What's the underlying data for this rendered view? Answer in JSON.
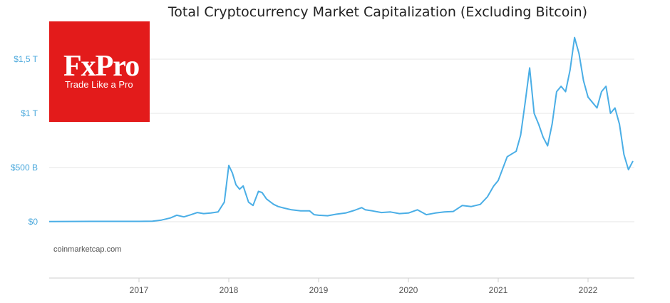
{
  "logo": {
    "brand": "FxPro",
    "tagline": "Trade Like a Pro"
  },
  "colors": {
    "line": "#4aaee6",
    "axis_text_y": "#4aa8dc",
    "axis_text_x": "#555555",
    "grid": "#e6e6e6",
    "brand": "#e31b1b"
  },
  "source": "coinmarketcap.com",
  "chart_data": {
    "type": "line",
    "title": "Total Cryptocurrency Market Capitalization (Excluding Bitcoin)",
    "xlabel": "",
    "ylabel": "",
    "xlim": [
      2016.0,
      2022.5
    ],
    "ylim": [
      -500,
      2000
    ],
    "y_ticks": [
      {
        "value": 0,
        "label": "$0"
      },
      {
        "value": 500,
        "label": "$500 B"
      },
      {
        "value": 1000,
        "label": "$1 T"
      },
      {
        "value": 1500,
        "label": "$1,5 T"
      }
    ],
    "x_ticks": [
      {
        "value": 2017,
        "label": "2017"
      },
      {
        "value": 2018,
        "label": "2018"
      },
      {
        "value": 2019,
        "label": "2019"
      },
      {
        "value": 2020,
        "label": "2020"
      },
      {
        "value": 2021,
        "label": "2021"
      },
      {
        "value": 2022,
        "label": "2022"
      }
    ],
    "grid": true,
    "series": [
      {
        "values": [
          [
            2016.0,
            2
          ],
          [
            2016.5,
            3
          ],
          [
            2017.0,
            3
          ],
          [
            2017.15,
            5
          ],
          [
            2017.25,
            15
          ],
          [
            2017.35,
            35
          ],
          [
            2017.42,
            60
          ],
          [
            2017.5,
            45
          ],
          [
            2017.58,
            65
          ],
          [
            2017.65,
            85
          ],
          [
            2017.72,
            75
          ],
          [
            2017.8,
            80
          ],
          [
            2017.88,
            90
          ],
          [
            2017.95,
            180
          ],
          [
            2018.0,
            520
          ],
          [
            2018.04,
            450
          ],
          [
            2018.08,
            340
          ],
          [
            2018.12,
            300
          ],
          [
            2018.16,
            330
          ],
          [
            2018.22,
            180
          ],
          [
            2018.27,
            150
          ],
          [
            2018.33,
            280
          ],
          [
            2018.37,
            270
          ],
          [
            2018.42,
            210
          ],
          [
            2018.5,
            160
          ],
          [
            2018.55,
            140
          ],
          [
            2018.62,
            125
          ],
          [
            2018.7,
            110
          ],
          [
            2018.8,
            100
          ],
          [
            2018.9,
            100
          ],
          [
            2018.95,
            65
          ],
          [
            2019.0,
            60
          ],
          [
            2019.1,
            55
          ],
          [
            2019.2,
            70
          ],
          [
            2019.3,
            80
          ],
          [
            2019.4,
            105
          ],
          [
            2019.48,
            130
          ],
          [
            2019.52,
            110
          ],
          [
            2019.6,
            100
          ],
          [
            2019.7,
            85
          ],
          [
            2019.8,
            90
          ],
          [
            2019.9,
            75
          ],
          [
            2020.0,
            80
          ],
          [
            2020.1,
            110
          ],
          [
            2020.2,
            65
          ],
          [
            2020.3,
            80
          ],
          [
            2020.4,
            90
          ],
          [
            2020.5,
            95
          ],
          [
            2020.6,
            150
          ],
          [
            2020.7,
            140
          ],
          [
            2020.8,
            160
          ],
          [
            2020.88,
            230
          ],
          [
            2020.95,
            330
          ],
          [
            2021.0,
            380
          ],
          [
            2021.1,
            600
          ],
          [
            2021.2,
            650
          ],
          [
            2021.25,
            800
          ],
          [
            2021.3,
            1100
          ],
          [
            2021.35,
            1420
          ],
          [
            2021.4,
            1000
          ],
          [
            2021.45,
            900
          ],
          [
            2021.5,
            780
          ],
          [
            2021.55,
            700
          ],
          [
            2021.6,
            900
          ],
          [
            2021.65,
            1200
          ],
          [
            2021.7,
            1250
          ],
          [
            2021.75,
            1200
          ],
          [
            2021.8,
            1400
          ],
          [
            2021.85,
            1700
          ],
          [
            2021.9,
            1550
          ],
          [
            2021.95,
            1300
          ],
          [
            2022.0,
            1150
          ],
          [
            2022.05,
            1100
          ],
          [
            2022.1,
            1050
          ],
          [
            2022.15,
            1200
          ],
          [
            2022.2,
            1250
          ],
          [
            2022.25,
            1000
          ],
          [
            2022.3,
            1050
          ],
          [
            2022.35,
            900
          ],
          [
            2022.4,
            620
          ],
          [
            2022.45,
            480
          ],
          [
            2022.5,
            560
          ]
        ]
      }
    ]
  }
}
